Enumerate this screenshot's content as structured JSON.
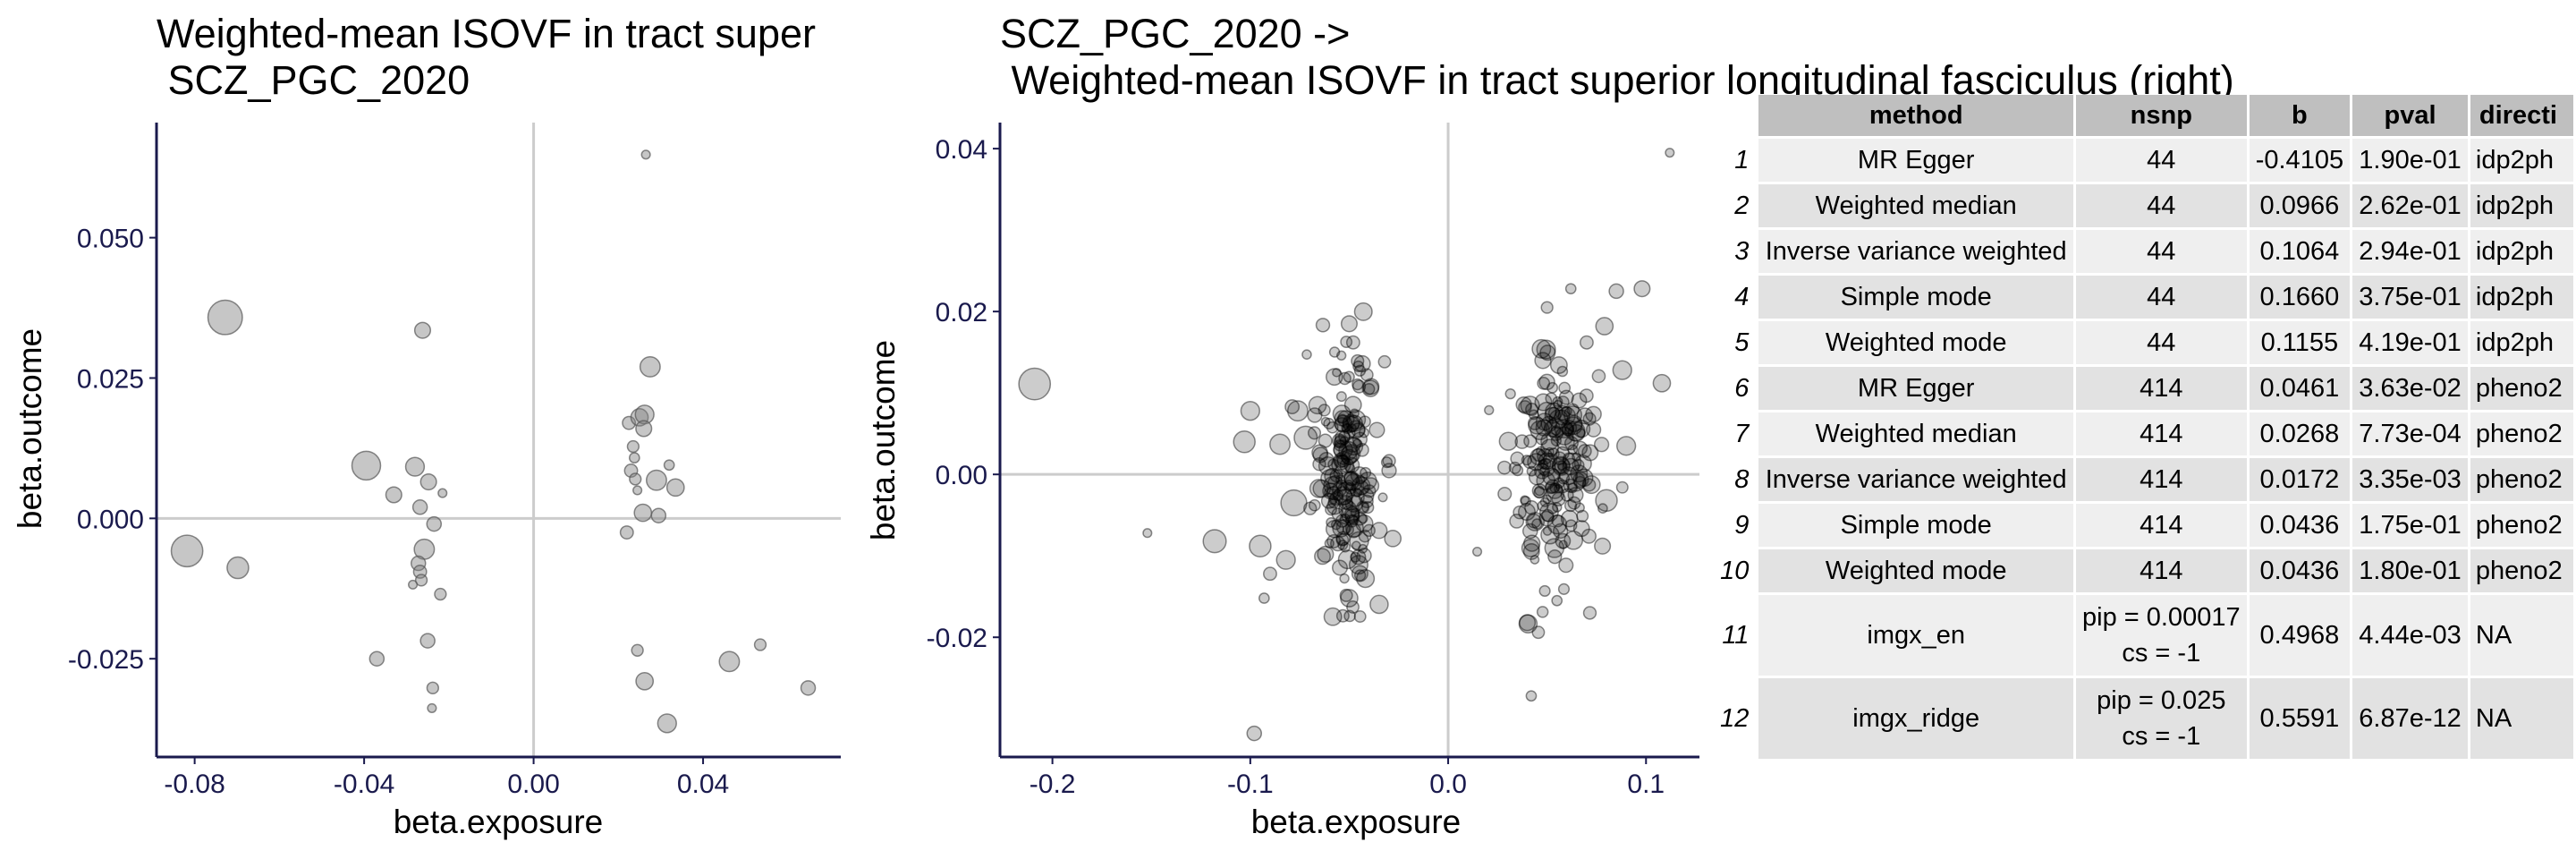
{
  "chart_data": [
    {
      "type": "scatter",
      "title": "Weighted-mean ISOVF in tract super\n SCZ_PGC_2020",
      "xlabel": "beta.exposure",
      "ylabel": "beta.outcome",
      "xlim": [
        -0.089,
        0.0725
      ],
      "ylim": [
        -0.0425,
        0.0705
      ],
      "xticks": [
        -0.08,
        -0.04,
        0.0,
        0.04
      ],
      "xtick_labels": [
        "-0.08",
        "-0.04",
        "0.00",
        "0.04"
      ],
      "yticks": [
        -0.025,
        0.0,
        0.025,
        0.05
      ],
      "ytick_labels": [
        "-0.025",
        "0.000",
        "0.025",
        "0.050"
      ],
      "reference_lines": {
        "x": 0,
        "y": 0
      },
      "point_color": "#808080",
      "points": [
        [
          -0.0818,
          -0.0058,
          2.2
        ],
        [
          -0.0728,
          0.0358,
          2.4
        ],
        [
          -0.0698,
          -0.0088,
          1.5
        ],
        [
          -0.0395,
          0.0094,
          2.0
        ],
        [
          -0.037,
          -0.025,
          1.0
        ],
        [
          -0.033,
          0.0042,
          1.1
        ],
        [
          -0.028,
          0.0092,
          1.3
        ],
        [
          -0.0262,
          0.0335,
          1.1
        ],
        [
          -0.0268,
          0.002,
          1.0
        ],
        [
          -0.0258,
          -0.0055,
          1.4
        ],
        [
          -0.0272,
          -0.008,
          1.0
        ],
        [
          -0.0268,
          -0.0095,
          0.9
        ],
        [
          -0.0265,
          -0.011,
          0.8
        ],
        [
          -0.0285,
          -0.0118,
          0.6
        ],
        [
          -0.0248,
          0.0065,
          1.1
        ],
        [
          -0.0235,
          -0.001,
          1.0
        ],
        [
          -0.025,
          -0.0218,
          1.0
        ],
        [
          -0.0238,
          -0.0302,
          0.8
        ],
        [
          -0.024,
          -0.0338,
          0.6
        ],
        [
          -0.0215,
          0.0045,
          0.6
        ],
        [
          -0.022,
          -0.0135,
          0.8
        ],
        [
          0.0225,
          0.017,
          0.9
        ],
        [
          0.0235,
          0.0128,
          0.8
        ],
        [
          0.0238,
          0.0108,
          0.7
        ],
        [
          0.023,
          0.0085,
          0.9
        ],
        [
          0.024,
          0.007,
          0.8
        ],
        [
          0.0245,
          0.005,
          0.6
        ],
        [
          0.022,
          -0.0025,
          0.9
        ],
        [
          0.025,
          0.018,
          1.2
        ],
        [
          0.0262,
          0.0185,
          1.3
        ],
        [
          0.026,
          0.016,
          1.1
        ],
        [
          0.0275,
          0.027,
          1.4
        ],
        [
          0.0258,
          0.001,
          1.2
        ],
        [
          0.029,
          0.0068,
          1.4
        ],
        [
          0.0295,
          0.0005,
          1.0
        ],
        [
          0.032,
          0.0095,
          0.7
        ],
        [
          0.0335,
          0.0055,
          1.2
        ],
        [
          0.0265,
          0.0648,
          0.6
        ],
        [
          0.0245,
          -0.0235,
          0.8
        ],
        [
          0.0262,
          -0.029,
          1.2
        ],
        [
          0.0315,
          -0.0365,
          1.3
        ],
        [
          0.0462,
          -0.0255,
          1.4
        ],
        [
          0.0535,
          -0.0225,
          0.8
        ],
        [
          0.0648,
          -0.0302,
          1.0
        ]
      ]
    },
    {
      "type": "scatter",
      "title": "SCZ_PGC_2020 ->\n Weighted-mean ISOVF in tract superior longitudinal fasciculus (right)",
      "xlabel": "beta.exposure",
      "ylabel": "beta.outcome",
      "xlim": [
        -0.2265,
        0.127
      ],
      "ylim": [
        -0.0347,
        0.0432
      ],
      "xticks": [
        -0.2,
        -0.1,
        0.0,
        0.1
      ],
      "xtick_labels": [
        "-0.2",
        "-0.1",
        "0.0",
        "0.1"
      ],
      "yticks": [
        -0.02,
        0.0,
        0.02,
        0.04
      ],
      "ytick_labels": [
        "-0.02",
        "0.00",
        "0.02",
        "0.04"
      ],
      "reference_lines": {
        "x": 0,
        "y": 0
      },
      "point_color": "#000000",
      "cluster_note_visible": false,
      "points": [
        [
          -0.209,
          0.0111,
          2.2
        ],
        [
          -0.152,
          -0.0072,
          0.6
        ],
        [
          -0.118,
          -0.0082,
          1.6
        ],
        [
          -0.098,
          -0.0318,
          1.0
        ],
        [
          -0.1,
          0.0078,
          1.3
        ],
        [
          -0.103,
          0.004,
          1.5
        ],
        [
          -0.085,
          0.0037,
          1.4
        ],
        [
          -0.095,
          -0.0088,
          1.5
        ],
        [
          -0.09,
          -0.0122,
          0.9
        ],
        [
          -0.093,
          -0.0152,
          0.7
        ],
        [
          -0.082,
          -0.0105,
          1.3
        ],
        [
          -0.078,
          -0.0035,
          1.8
        ],
        [
          -0.076,
          0.0078,
          1.4
        ],
        [
          -0.072,
          0.0045,
          1.6
        ],
        [
          -0.066,
          0.0085,
          1.2
        ],
        [
          -0.05,
          0.0185,
          1.1
        ],
        [
          -0.05,
          -0.0152,
          1.2
        ],
        [
          -0.048,
          0.0162,
          0.9
        ],
        [
          -0.062,
          -0.0098,
          1.1
        ],
        [
          -0.045,
          -0.0082,
          1.3
        ],
        [
          0.085,
          0.0225,
          1.0
        ],
        [
          0.098,
          0.0228,
          1.1
        ],
        [
          0.112,
          0.0395,
          0.6
        ],
        [
          0.108,
          0.0112,
          1.2
        ],
        [
          0.079,
          0.0182,
          1.2
        ],
        [
          0.088,
          0.0128,
          1.3
        ],
        [
          0.08,
          -0.0032,
          1.5
        ],
        [
          0.078,
          -0.0088,
          1.1
        ],
        [
          0.04,
          -0.0182,
          1.1
        ],
        [
          0.055,
          -0.0155,
          0.7
        ],
        [
          0.042,
          -0.0272,
          0.7
        ],
        [
          0.062,
          0.0228,
          0.7
        ],
        [
          0.07,
          0.0162,
          0.9
        ],
        [
          0.05,
          0.0205,
          0.8
        ],
        [
          0.09,
          0.0035,
          1.3
        ]
      ],
      "cluster_note": "dense clusters of ~370 semi-transparent points around x=-0.06..-0.04 and x=0.03..0.08 (values approximated)"
    }
  ],
  "table": {
    "headers": [
      "method",
      "nsnp",
      "b",
      "pval",
      "directi"
    ],
    "rows": [
      {
        "n": "1",
        "method": "MR Egger",
        "nsnp": "44",
        "b": "-0.4105",
        "pval": "1.90e-01",
        "dir": "idp2ph"
      },
      {
        "n": "2",
        "method": "Weighted median",
        "nsnp": "44",
        "b": "0.0966",
        "pval": "2.62e-01",
        "dir": "idp2ph"
      },
      {
        "n": "3",
        "method": "Inverse variance weighted",
        "nsnp": "44",
        "b": "0.1064",
        "pval": "2.94e-01",
        "dir": "idp2ph"
      },
      {
        "n": "4",
        "method": "Simple mode",
        "nsnp": "44",
        "b": "0.1660",
        "pval": "3.75e-01",
        "dir": "idp2ph"
      },
      {
        "n": "5",
        "method": "Weighted mode",
        "nsnp": "44",
        "b": "0.1155",
        "pval": "4.19e-01",
        "dir": "idp2ph"
      },
      {
        "n": "6",
        "method": "MR Egger",
        "nsnp": "414",
        "b": "0.0461",
        "pval": "3.63e-02",
        "dir": "pheno2"
      },
      {
        "n": "7",
        "method": "Weighted median",
        "nsnp": "414",
        "b": "0.0268",
        "pval": "7.73e-04",
        "dir": "pheno2"
      },
      {
        "n": "8",
        "method": "Inverse variance weighted",
        "nsnp": "414",
        "b": "0.0172",
        "pval": "3.35e-03",
        "dir": "pheno2"
      },
      {
        "n": "9",
        "method": "Simple mode",
        "nsnp": "414",
        "b": "0.0436",
        "pval": "1.75e-01",
        "dir": "pheno2"
      },
      {
        "n": "10",
        "method": "Weighted mode",
        "nsnp": "414",
        "b": "0.0436",
        "pval": "1.80e-01",
        "dir": "pheno2"
      },
      {
        "n": "11",
        "method": "imgx_en",
        "nsnp_line1": "pip = 0.00017",
        "nsnp_line2": "cs = -1",
        "b": "0.4968",
        "pval": "4.44e-03",
        "dir": "NA"
      },
      {
        "n": "12",
        "method": "imgx_ridge",
        "nsnp_line1": "pip = 0.025",
        "nsnp_line2": "cs = -1",
        "b": "0.5591",
        "pval": "6.87e-12",
        "dir": "NA"
      }
    ]
  }
}
